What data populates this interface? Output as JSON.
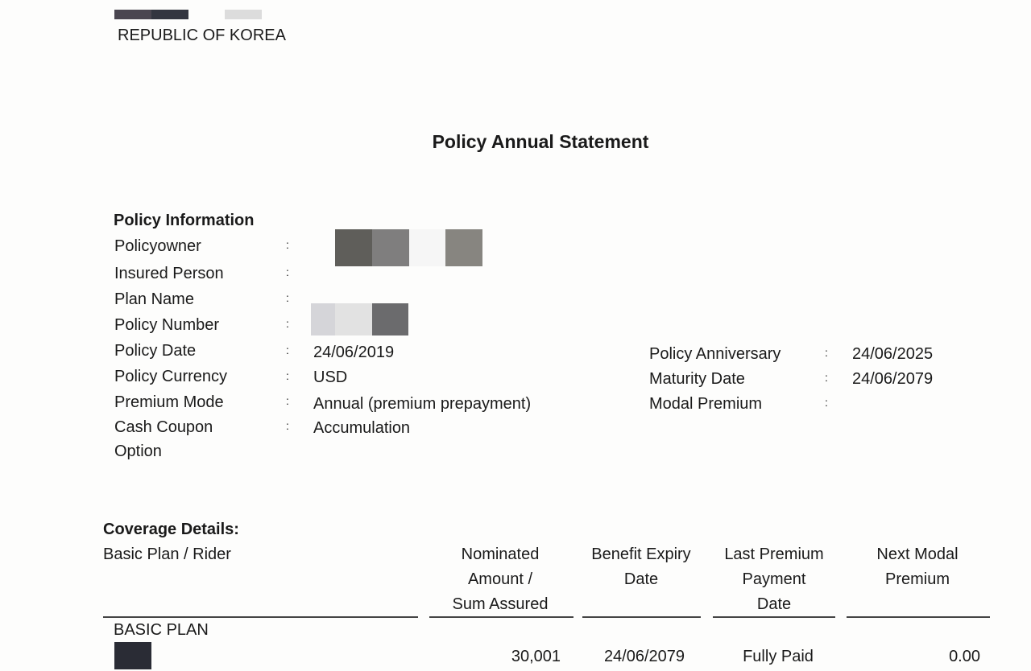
{
  "header": {
    "country": "REPUBLIC OF KOREA"
  },
  "title": "Policy Annual Statement",
  "policy_information": {
    "heading": "Policy Information",
    "separator": ":",
    "left_fields": [
      {
        "label": "Policyowner",
        "value": ""
      },
      {
        "label": "Insured Person",
        "value": ""
      },
      {
        "label": "Plan Name",
        "value": ""
      },
      {
        "label": "Policy Number",
        "value": ""
      },
      {
        "label": "Policy Date",
        "value": "24/06/2019"
      },
      {
        "label": "Policy Currency",
        "value": "USD"
      },
      {
        "label": "Premium Mode",
        "value": "Annual (premium prepayment)"
      },
      {
        "label": "Cash Coupon",
        "label_line2": "Option",
        "value": "Accumulation"
      }
    ],
    "right_fields": [
      {
        "label": "Policy Anniversary",
        "value": "24/06/2025"
      },
      {
        "label": "Maturity Date",
        "value": "24/06/2079"
      },
      {
        "label": "Modal Premium",
        "value": ""
      }
    ]
  },
  "coverage": {
    "heading": "Coverage Details:",
    "columns": {
      "plan": "Basic Plan / Rider",
      "nominated": [
        "Nominated",
        "Amount /",
        "Sum Assured"
      ],
      "expiry": [
        "Benefit Expiry",
        "Date"
      ],
      "last_payment": [
        "Last Premium",
        "Payment",
        "Date"
      ],
      "next_premium": [
        "Next Modal",
        "Premium"
      ]
    },
    "rows": [
      {
        "section": "BASIC PLAN",
        "nominated": "30,001",
        "expiry": "24/06/2079",
        "last_payment": "Fully Paid",
        "next_premium": "0.00"
      }
    ]
  }
}
